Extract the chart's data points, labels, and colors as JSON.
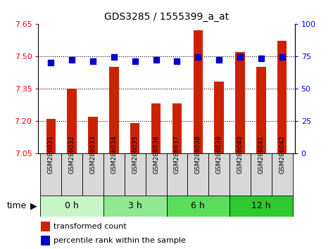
{
  "title": "GDS3285 / 1555399_a_at",
  "samples": [
    "GSM286031",
    "GSM286032",
    "GSM286033",
    "GSM286034",
    "GSM286035",
    "GSM286036",
    "GSM286037",
    "GSM286038",
    "GSM286039",
    "GSM286040",
    "GSM286041",
    "GSM286042"
  ],
  "transformed_count": [
    7.21,
    7.35,
    7.22,
    7.45,
    7.19,
    7.28,
    7.28,
    7.62,
    7.38,
    7.52,
    7.45,
    7.57
  ],
  "percentile_rank": [
    70,
    72,
    71,
    74,
    71,
    72,
    71,
    74,
    72,
    74,
    73,
    74
  ],
  "groups": [
    {
      "label": "0 h",
      "start": 0,
      "end": 3,
      "color": "#c8f5c8"
    },
    {
      "label": "3 h",
      "start": 3,
      "end": 6,
      "color": "#90e890"
    },
    {
      "label": "6 h",
      "start": 6,
      "end": 9,
      "color": "#5add5a"
    },
    {
      "label": "12 h",
      "start": 9,
      "end": 12,
      "color": "#2ec82e"
    }
  ],
  "ylim_left": [
    7.05,
    7.65
  ],
  "ylim_right": [
    0,
    100
  ],
  "yticks_left": [
    7.05,
    7.2,
    7.35,
    7.5,
    7.65
  ],
  "yticks_right": [
    0,
    25,
    50,
    75,
    100
  ],
  "bar_color": "#cc2200",
  "dot_color": "#0000cc",
  "bar_width": 0.45,
  "dot_size": 40,
  "grid_color": "black",
  "sample_box_color": "#d8d8d8"
}
